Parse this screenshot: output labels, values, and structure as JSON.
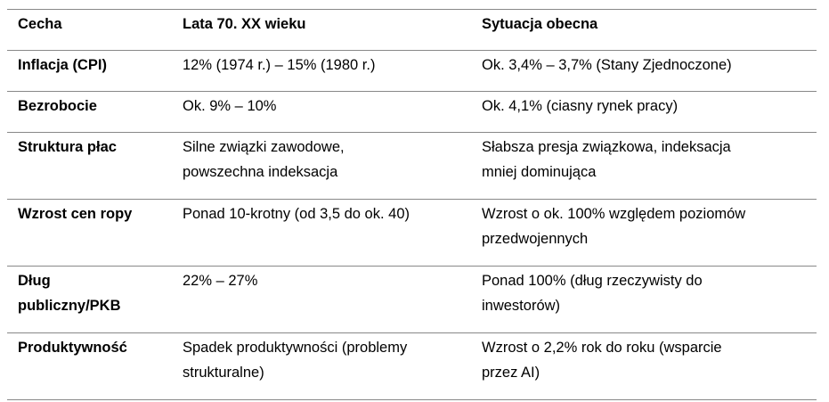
{
  "table": {
    "header": [
      "Cecha",
      "Lata 70. XX wieku",
      "Sytuacja obecna"
    ],
    "rows": [
      [
        [
          "Inflacja (CPI)"
        ],
        [
          "12% (1974 r.) – 15% (1980 r.)"
        ],
        [
          "Ok. 3,4% – 3,7% (Stany Zjednoczone)"
        ]
      ],
      [
        [
          "Bezrobocie"
        ],
        [
          "Ok. 9% – 10%"
        ],
        [
          "Ok. 4,1% (ciasny rynek pracy)"
        ]
      ],
      [
        [
          "Struktura płac"
        ],
        [
          "Silne związki zawodowe,",
          "powszechna indeksacja"
        ],
        [
          "Słabsza presja związkowa, indeksacja",
          "mniej dominująca"
        ]
      ],
      [
        [
          "Wzrost cen ropy"
        ],
        [
          "Ponad 10-krotny (od 3,5 do ok. 40)"
        ],
        [
          "Wzrost o ok. 100% względem poziomów",
          "przedwojennych"
        ]
      ],
      [
        [
          "Dług",
          "publiczny/PKB"
        ],
        [
          "22% – 27%"
        ],
        [
          "Ponad 100% (dług rzeczywisty do",
          "inwestorów)"
        ]
      ],
      [
        [
          "Produktywność"
        ],
        [
          "Spadek produktywności (problemy",
          "strukturalne)"
        ],
        [
          "Wzrost o 2,2% rok do roku (wsparcie",
          "przez AI)"
        ]
      ]
    ]
  }
}
